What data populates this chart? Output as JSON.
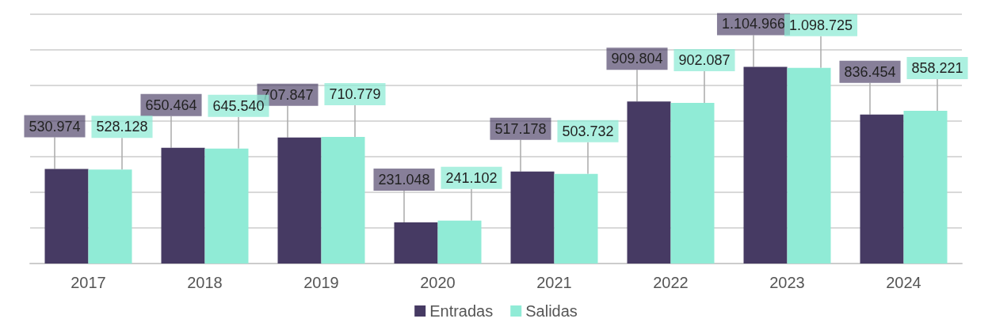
{
  "chart_data": {
    "type": "bar",
    "categories": [
      "2017",
      "2018",
      "2019",
      "2020",
      "2021",
      "2022",
      "2023",
      "2024"
    ],
    "series": [
      {
        "name": "Entradas",
        "color": "#463a63",
        "values": [
          530974,
          650464,
          707847,
          231048,
          517178,
          909804,
          1104966,
          836454
        ],
        "value_labels": [
          "530.974",
          "650.464",
          "707.847",
          "231.048",
          "517.178",
          "909.804",
          "1.104.966",
          "836.454"
        ]
      },
      {
        "name": "Salidas",
        "color": "#90ebd6",
        "values": [
          528128,
          645540,
          710779,
          241102,
          503732,
          902087,
          1098725,
          858221
        ],
        "value_labels": [
          "528.128",
          "645.540",
          "710.779",
          "241.102",
          "503.732",
          "902.087",
          "1.098.725",
          "858.221"
        ]
      }
    ],
    "ylim": [
      0,
      1400000
    ],
    "yticks": [
      0,
      200000,
      400000,
      600000,
      800000,
      1000000,
      1200000,
      1400000
    ],
    "tick_labels": "x",
    "grid": "y",
    "legend": "bottom"
  }
}
